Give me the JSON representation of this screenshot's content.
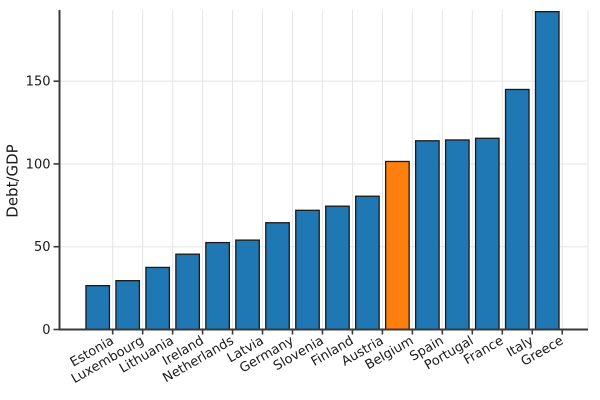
{
  "chart_data": {
    "type": "bar",
    "title": "",
    "xlabel": "",
    "ylabel": "Debt/GDP",
    "categories": [
      "Estonia",
      "Luxembourg",
      "Lithuania",
      "Ireland",
      "Netherlands",
      "Latvia",
      "Germany",
      "Slovenia",
      "Finland",
      "Austria",
      "Belgium",
      "Spain",
      "Portugal",
      "France",
      "Italy",
      "Greece"
    ],
    "values": [
      26.5,
      29.5,
      37.5,
      45.5,
      52.5,
      54,
      64.5,
      72,
      74.5,
      80.5,
      101.5,
      114,
      114.5,
      115.5,
      145,
      192
    ],
    "highlighted_category": "Belgium",
    "highlight_index": 10,
    "yticks": [
      0,
      50,
      100,
      150
    ],
    "ylim": [
      0,
      193
    ],
    "grid": true,
    "legend": "none",
    "x_tick_rotation_deg": 30,
    "colors": {
      "bar": "#1f77b4",
      "highlight": "#ff7f0e",
      "bar_edge": "#1a1a1a",
      "grid": "#e5e5e5",
      "axis": "#3a3a3a",
      "text": "#1a1a1a",
      "background": "#ffffff"
    }
  }
}
